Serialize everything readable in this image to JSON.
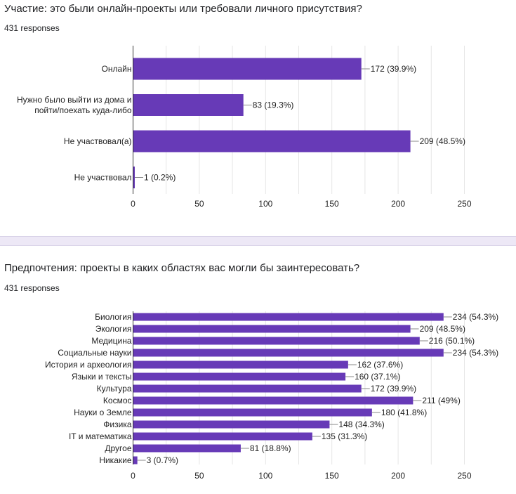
{
  "chart_data": [
    {
      "type": "bar",
      "orientation": "horizontal",
      "title": "Участие: это были онлайн-проекты или требовали личного присутствия?",
      "responses": "431 responses",
      "categories": [
        [
          "Онлайн"
        ],
        [
          "Нужно было выйти из дома и",
          "пойти/поехать куда-либо"
        ],
        [
          "Не участвовал(а)"
        ],
        [
          "Не участвовал"
        ]
      ],
      "values": [
        172,
        83,
        209,
        1
      ],
      "value_labels": [
        "172 (39.9%)",
        "83 (19.3%)",
        "209 (48.5%)",
        "1 (0.2%)"
      ],
      "xlim": [
        0,
        250
      ],
      "xticks": [
        0,
        50,
        100,
        150,
        200,
        250
      ],
      "xlabel": "",
      "ylabel": "",
      "grid": true,
      "bar_color": "#673ab7"
    },
    {
      "type": "bar",
      "orientation": "horizontal",
      "title": "Предпочтения: проекты в каких областях вас могли бы заинтересовать?",
      "responses": "431 responses",
      "categories": [
        [
          "Биология"
        ],
        [
          "Экология"
        ],
        [
          "Медицина"
        ],
        [
          "Социальные науки"
        ],
        [
          "История и археология"
        ],
        [
          "Языки и тексты"
        ],
        [
          "Культура"
        ],
        [
          "Космос"
        ],
        [
          "Науки о Земле"
        ],
        [
          "Физика"
        ],
        [
          "IT и математика"
        ],
        [
          "Другое"
        ],
        [
          "Никакие"
        ]
      ],
      "values": [
        234,
        209,
        216,
        234,
        162,
        160,
        172,
        211,
        180,
        148,
        135,
        81,
        3
      ],
      "value_labels": [
        "234 (54.3%)",
        "209 (48.5%)",
        "216 (50.1%)",
        "234 (54.3%)",
        "162 (37.6%)",
        "160 (37.1%)",
        "172 (39.9%)",
        "211 (49%)",
        "180 (41.8%)",
        "148 (34.3%)",
        "135 (31.3%)",
        "81 (18.8%)",
        "3 (0.7%)"
      ],
      "xlim": [
        0,
        250
      ],
      "xticks": [
        0,
        50,
        100,
        150,
        200,
        250
      ],
      "xlabel": "",
      "ylabel": "",
      "grid": true,
      "bar_color": "#673ab7"
    }
  ]
}
